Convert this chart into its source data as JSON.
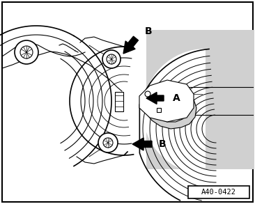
{
  "bg_color": "#ffffff",
  "border_color": "#000000",
  "label_A": "A",
  "label_B": "B",
  "ref_code": "A40-0422",
  "fig_width": 3.66,
  "fig_height": 2.93,
  "dpi": 100,
  "gray_light": "#d0d0d0",
  "gray_mid": "#b0b0b0"
}
